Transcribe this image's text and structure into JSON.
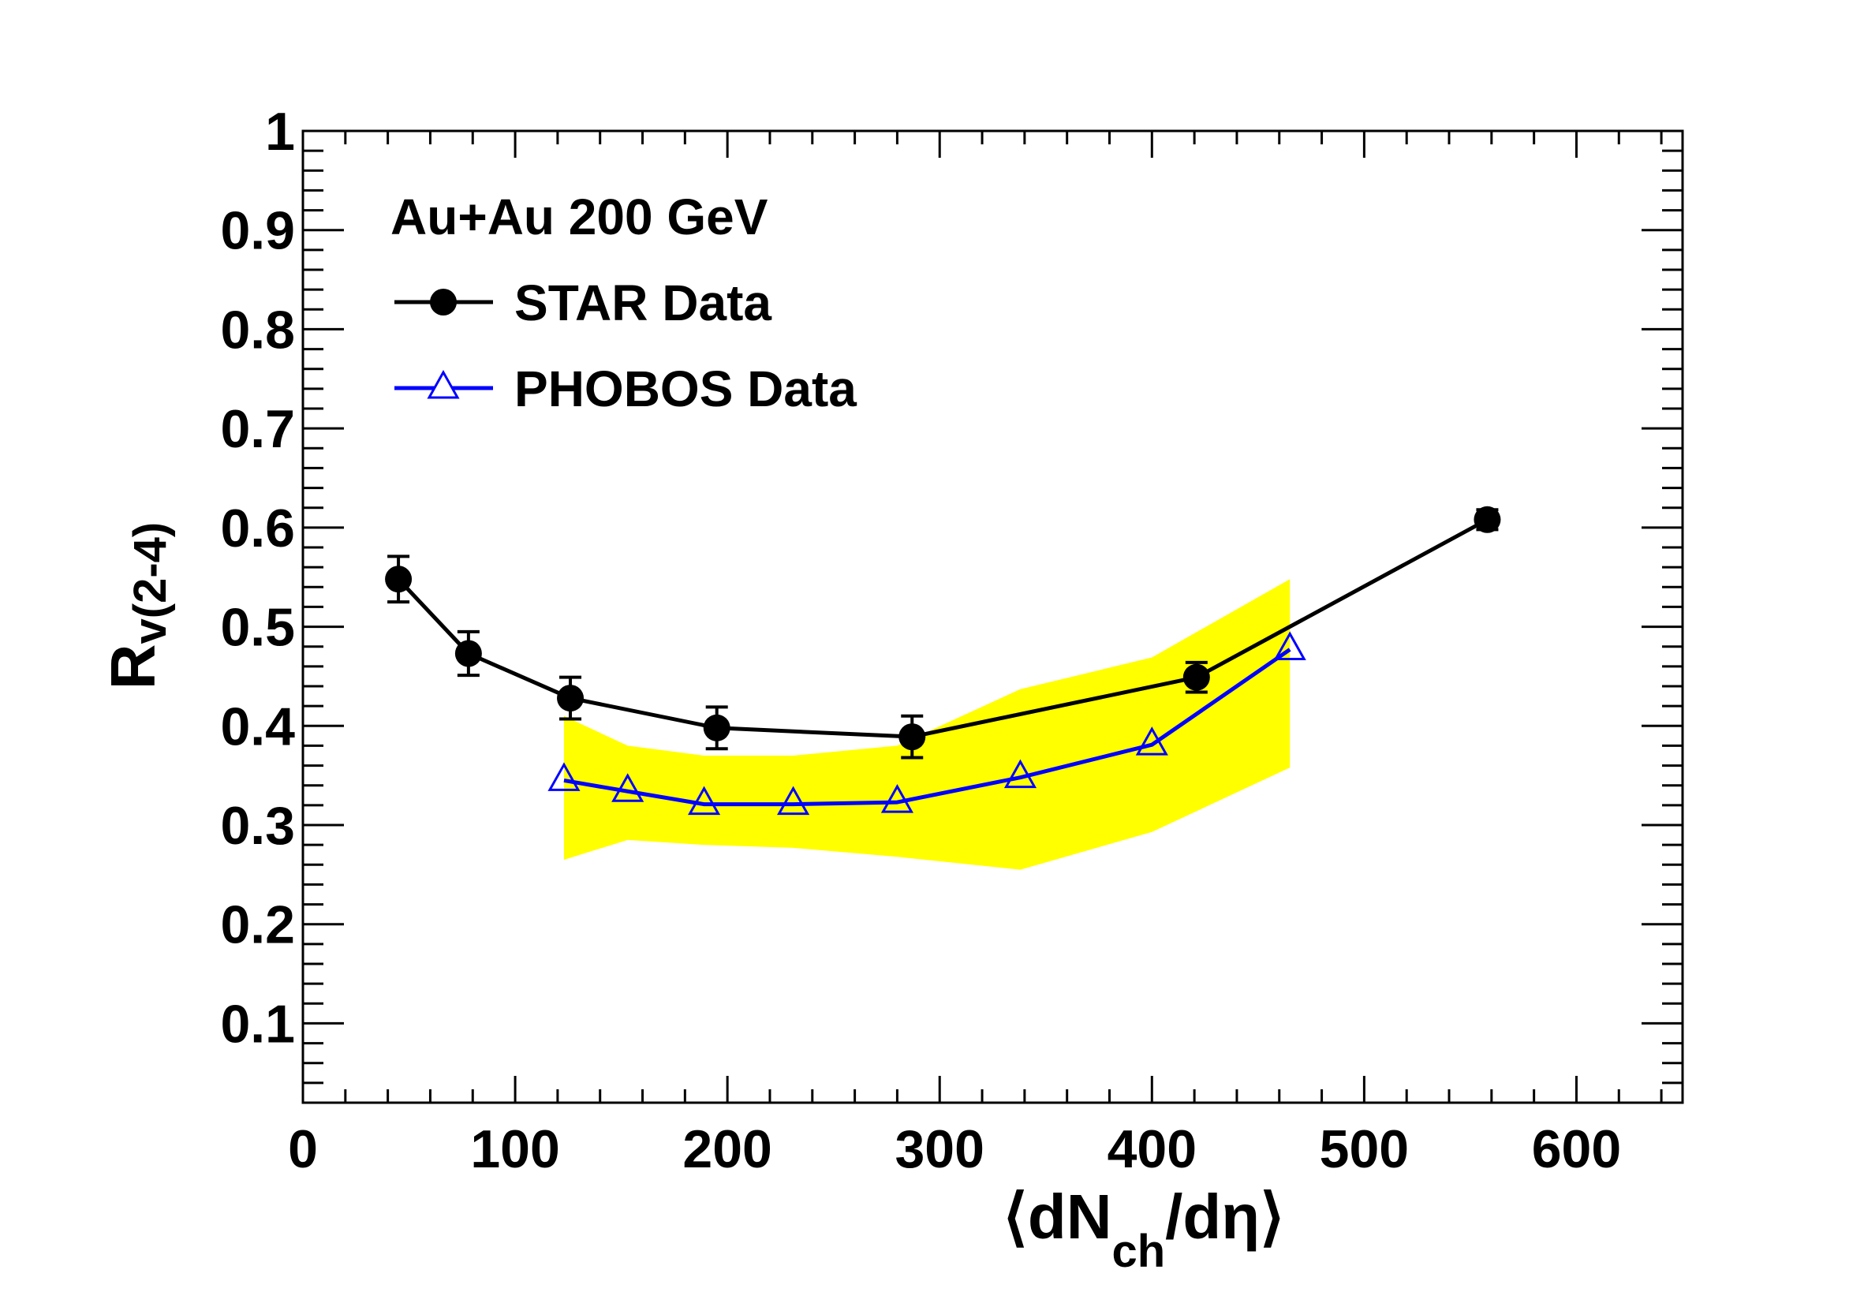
{
  "chart_data": {
    "type": "line",
    "annotation": "Au+Au 200 GeV",
    "xlabel": {
      "open": "⟨",
      "main": "dN",
      "sub": "ch",
      "rest": "/dη",
      "close": "⟩"
    },
    "ylabel": {
      "main": "R",
      "sub": "v(2-4)"
    },
    "xlim": [
      0,
      650
    ],
    "ylim": [
      0.02,
      1.0
    ],
    "x_ticks": [
      0,
      100,
      200,
      300,
      400,
      500,
      600
    ],
    "x_tick_labels": [
      "0",
      "100",
      "200",
      "300",
      "400",
      "500",
      "600"
    ],
    "y_ticks": [
      0.1,
      0.2,
      0.3,
      0.4,
      0.5,
      0.6,
      0.7,
      0.8,
      0.9,
      1.0
    ],
    "y_tick_labels": [
      "0.1",
      "0.2",
      "0.3",
      "0.4",
      "0.5",
      "0.6",
      "0.7",
      "0.8",
      "0.9",
      "1"
    ],
    "grid": false,
    "legend_position": "top-left",
    "series": [
      {
        "name": "STAR Data",
        "color": "#000000",
        "marker": "filled-circle",
        "x": [
          45,
          78,
          126,
          195,
          287,
          421,
          558
        ],
        "y": [
          0.548,
          0.473,
          0.428,
          0.398,
          0.389,
          0.449,
          0.608
        ],
        "yerr": [
          0.023,
          0.022,
          0.021,
          0.021,
          0.021,
          0.015,
          0.01
        ]
      },
      {
        "name": "PHOBOS Data",
        "color": "#0000ff",
        "marker": "open-triangle",
        "x": [
          123,
          153,
          189,
          231,
          280,
          338,
          400,
          465
        ],
        "y": [
          0.345,
          0.334,
          0.321,
          0.321,
          0.323,
          0.348,
          0.381,
          0.477
        ],
        "band": {
          "color": "#ffff00",
          "upper": [
            0.41,
            0.38,
            0.37,
            0.37,
            0.38,
            0.437,
            0.469,
            0.548
          ],
          "lower": [
            0.265,
            0.285,
            0.28,
            0.277,
            0.268,
            0.255,
            0.293,
            0.358
          ]
        }
      }
    ]
  }
}
